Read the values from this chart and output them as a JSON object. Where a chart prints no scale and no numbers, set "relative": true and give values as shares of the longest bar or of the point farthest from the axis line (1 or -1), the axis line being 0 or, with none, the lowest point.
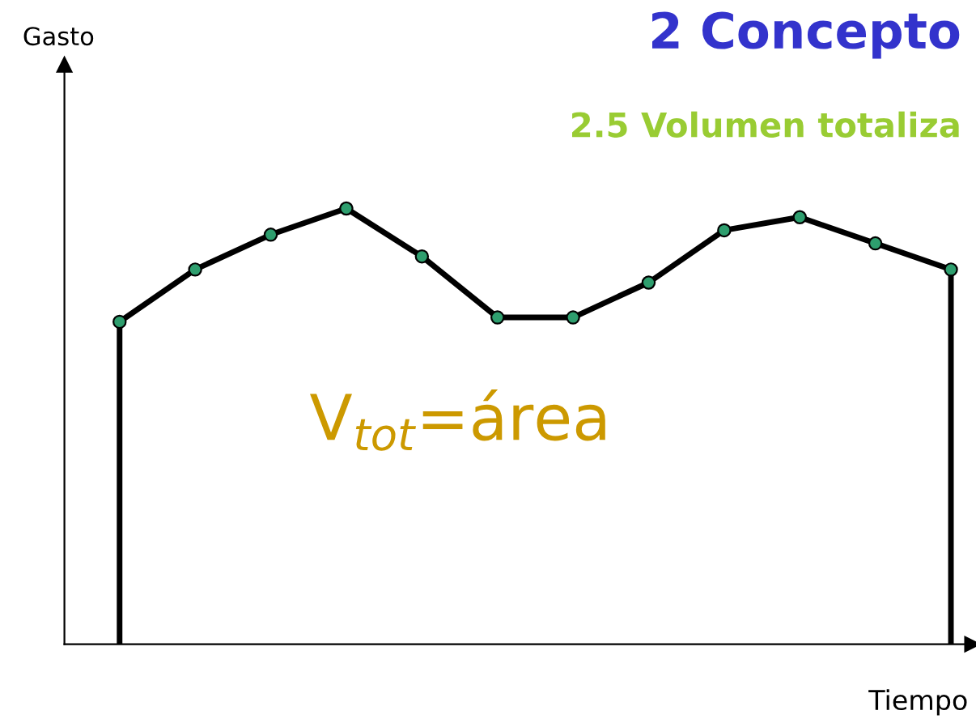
{
  "chart_data": {
    "type": "line",
    "title": "2 Concepto",
    "subtitle": "2.5 Volumen totaliza",
    "xlabel": "Tiempo",
    "annotations": [
      "V$_{tot}$=área",
      "Gasto"
    ],
    "categories": [
      null,
      null,
      null,
      null,
      null,
      null,
      null,
      null,
      null,
      null,
      null,
      null
    ],
    "relative": true,
    "marker": "circle",
    "line_style": "solid",
    "grid": false,
    "series": [
      {
        "color": "#000000",
        "values": [
          0.74,
          0.86,
          0.94,
          1,
          0.89,
          0.75,
          0.75,
          0.83,
          0.95,
          0.98,
          0.92,
          0.86
        ]
      }
    ]
  }
}
